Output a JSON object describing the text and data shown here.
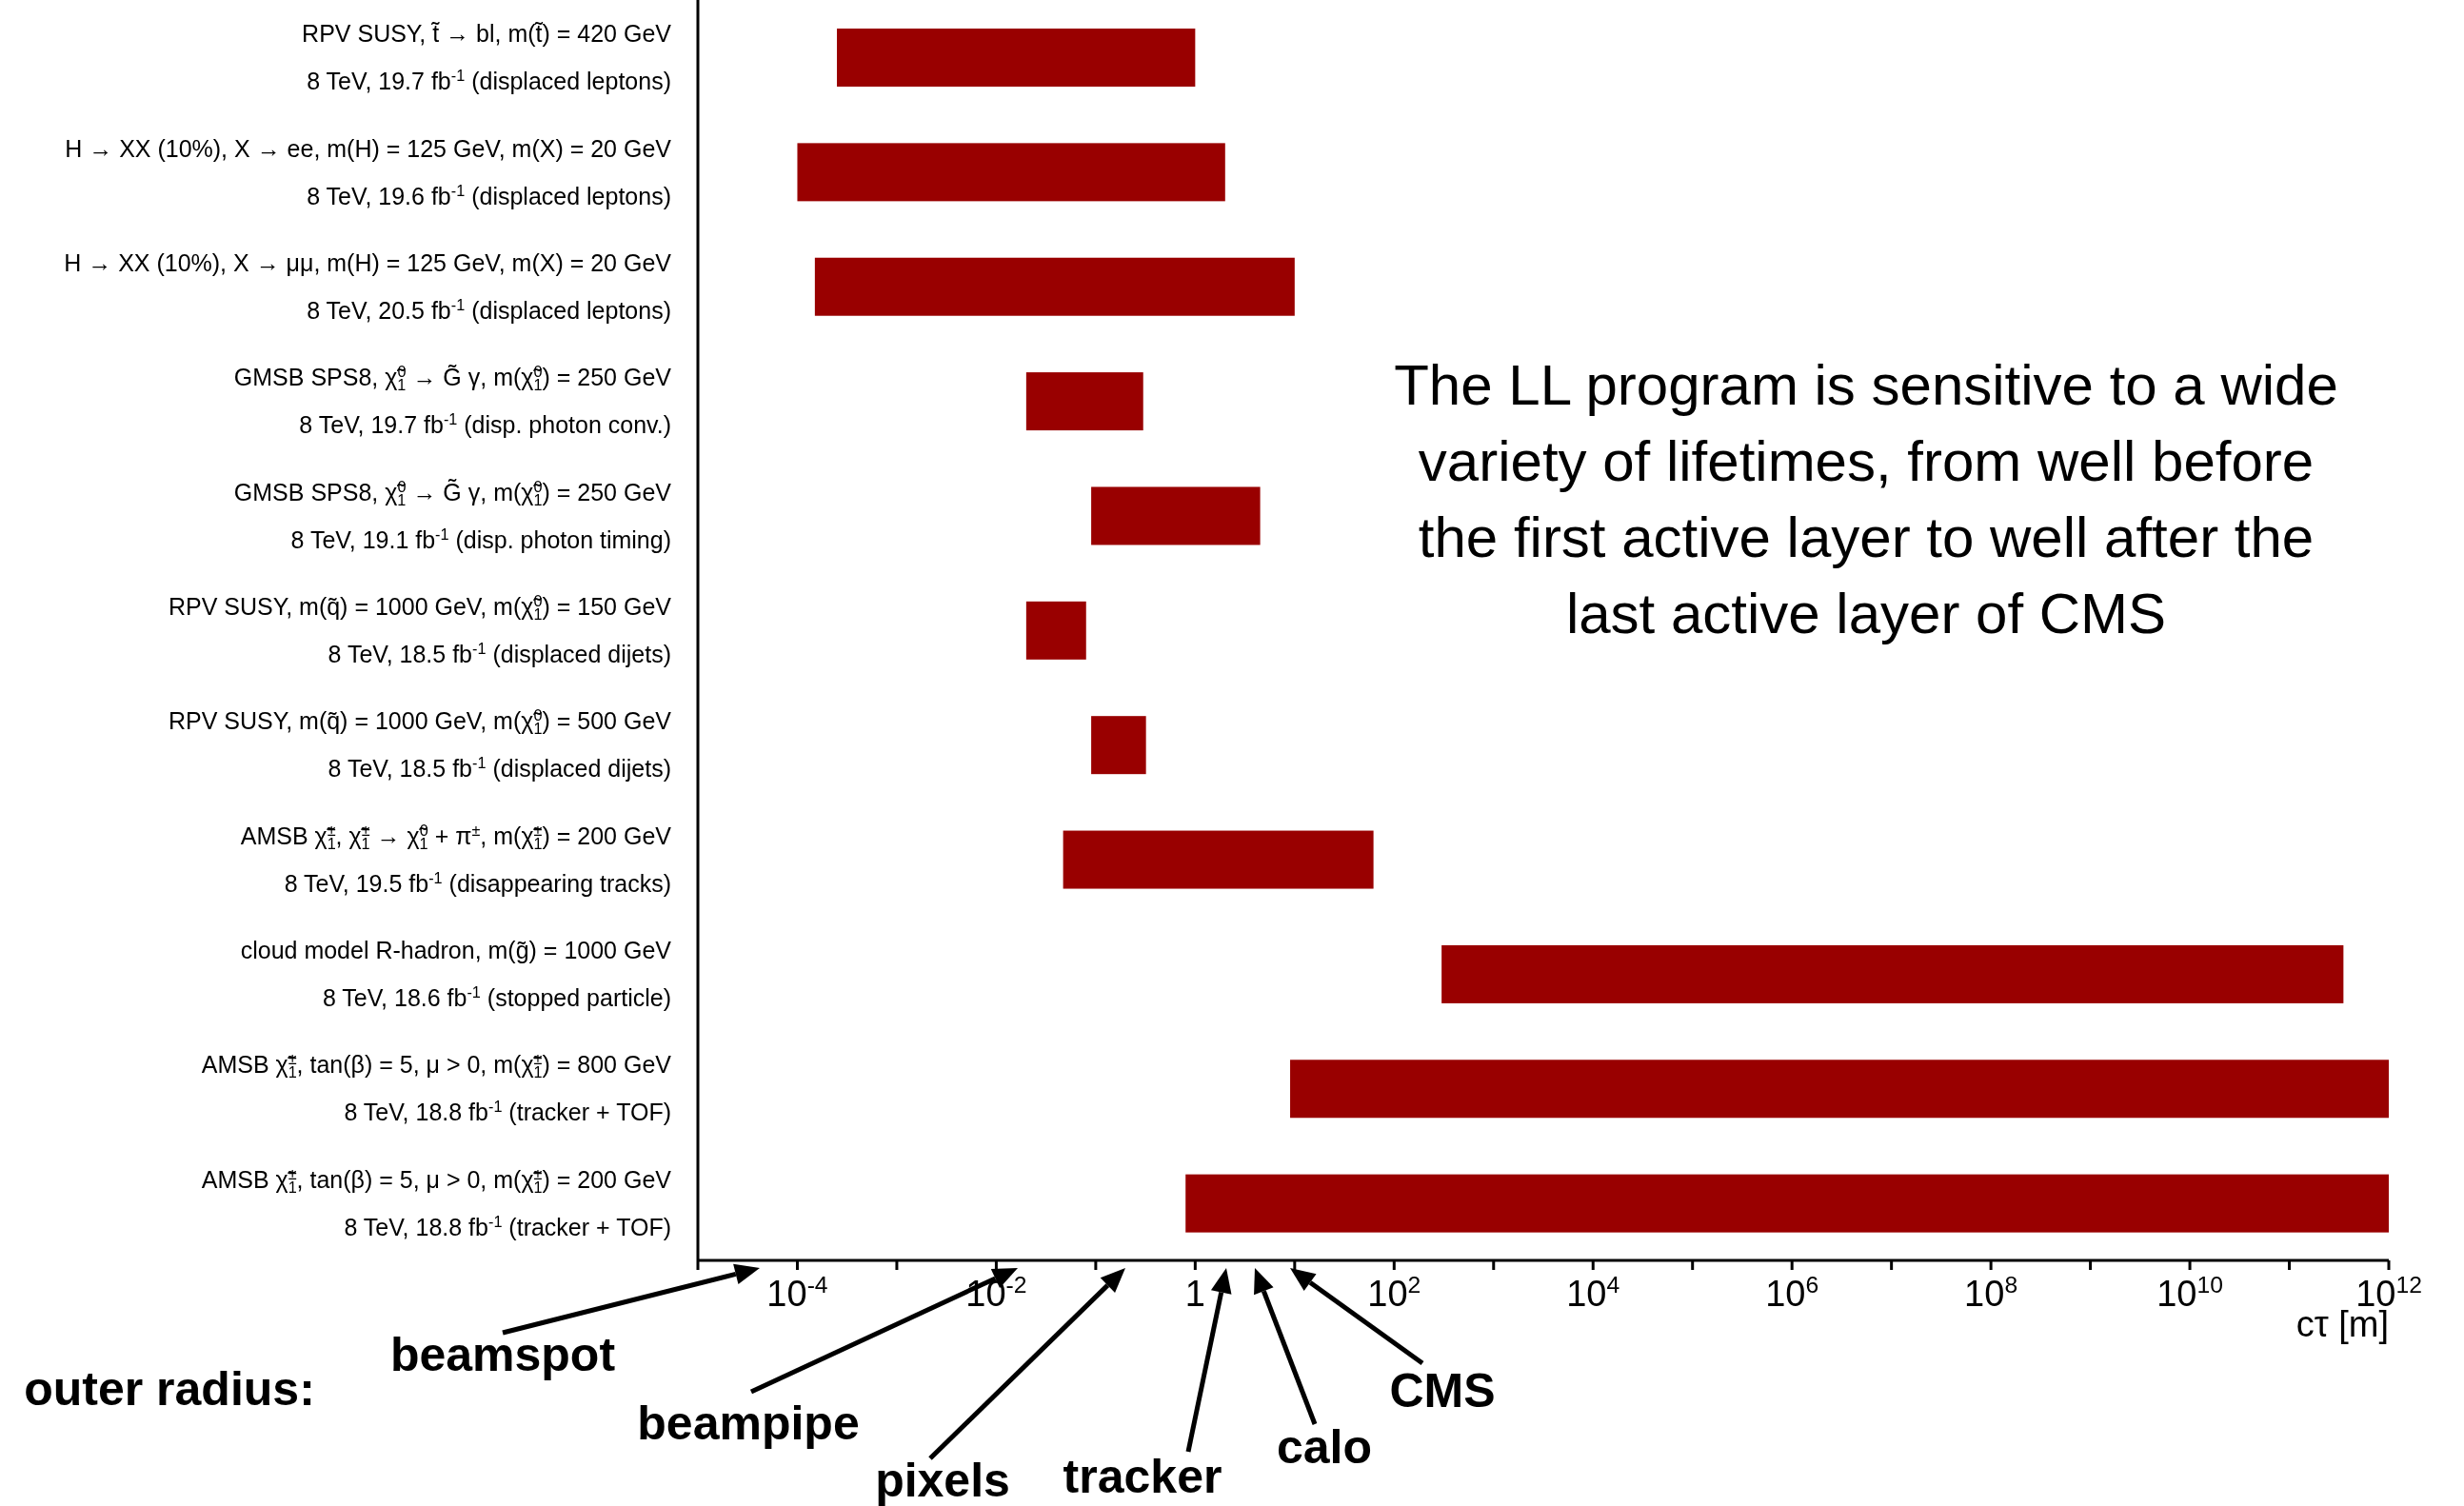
{
  "chart_data": {
    "type": "bar",
    "orientation": "horizontal",
    "log": "x",
    "color": "#990000",
    "categories": [
      "RPV SUSY, t̃ → bl, m(t̃) = 420 GeV\n8 TeV, 19.7 fb$^{-1}$  (displaced leptons)",
      "H → XX (10%), X → ee, m(H) = 125 GeV, m(X) = 20 GeV\n8 TeV, 19.6 fb$^{-1}$  (displaced leptons)",
      "H → XX (10%), X → μμ, m(H) = 125 GeV, m(X) = 20 GeV\n8 TeV, 20.5 fb$^{-1}$  (displaced leptons)",
      "GMSB SPS8, χ̃$_{1}$$^{0}$ → G̃ γ, m(χ̃$_{1}$$^{0}$) = 250 GeV\n8 TeV, 19.7 fb$^{-1}$  (disp. photon conv.)",
      "GMSB SPS8, χ̃$_{1}$$^{0}$ → G̃ γ, m(χ̃$_{1}$$^{0}$) = 250 GeV\n8 TeV, 19.1 fb$^{-1}$  (disp. photon timing)",
      "RPV SUSY, m(q̃) = 1000 GeV, m(χ̃$_{1}$$^{0}$) = 150 GeV\n8 TeV, 18.5 fb$^{-1}$  (displaced dijets)",
      "RPV SUSY, m(q̃) = 1000 GeV, m(χ̃$_{1}$$^{0}$) = 500 GeV\n8 TeV, 18.5 fb$^{-1}$  (displaced dijets)",
      "AMSB χ̃$_{1}$$^{±}$, χ̃$_{1}$$^{±}$ → χ̃$_{1}$$^{0}$ + π$^{±}$, m(χ̃$_{1}$$^{±}$) = 200 GeV\n8 TeV, 19.5 fb$^{-1}$  (disappearing tracks)",
      "cloud model R-hadron, m(g̃) = 1000 GeV\n8 TeV, 18.6 fb$^{-1}$  (stopped particle)",
      "AMSB χ̃$_{1}$$^{±}$, tan(β) = 5, μ > 0, m(χ̃$_{1}$$^{±}$) = 800 GeV\n8 TeV, 18.8 fb$^{-1}$  (tracker + TOF)",
      "AMSB χ̃$_{1}$$^{±}$, tan(β) = 5, μ > 0, m(χ̃$_{1}$$^{±}$) = 200 GeV\n8 TeV, 18.8 fb$^{-1}$  (tracker + TOF)"
    ],
    "base": [
      0.00025,
      0.0001,
      0.00015,
      0.02,
      0.09,
      0.02,
      0.09,
      0.047,
      300,
      9,
      0.8
    ],
    "values": [
      0.99975,
      1.9999,
      9.99985,
      0.28,
      4.41,
      0.06,
      0.23,
      61.953,
      349999999700,
      999999999991,
      999999999999.2
    ],
    "xlim": [
      1e-05,
      1000000000000
    ],
    "xticks": [
      {
        "value": 1e-05,
        "label": null
      },
      {
        "value": 0.0001,
        "label": "10$^{-4}$"
      },
      {
        "value": 0.001,
        "label": null
      },
      {
        "value": 0.01,
        "label": "10$^{-2}$"
      },
      {
        "value": 0.1,
        "label": null
      },
      1,
      {
        "value": 10,
        "label": null
      },
      {
        "value": 100,
        "label": "10$^{2}$"
      },
      {
        "value": 1000,
        "label": null
      },
      {
        "value": 10000,
        "label": "10$^{4}$"
      },
      {
        "value": 100000,
        "label": null
      },
      {
        "value": 1000000,
        "label": "10$^{6}$"
      },
      {
        "value": 10000000,
        "label": null
      },
      {
        "value": 100000000,
        "label": "10$^{8}$"
      },
      {
        "value": 1000000000,
        "label": null
      },
      {
        "value": 10000000000,
        "label": "10$^{10}$"
      },
      {
        "value": 100000000000,
        "label": null
      },
      {
        "value": 1000000000000,
        "label": "10$^{12}$"
      }
    ],
    "xlabel": "cτ [m]",
    "annotations": [
      "The LL program is sensitive to a wide variety of lifetimes, from well before the first active layer to well after the last active layer of CMS",
      "outer radius:",
      "beamspot",
      "beampipe",
      "pixels",
      "tracker",
      "calo",
      "CMS"
    ]
  }
}
